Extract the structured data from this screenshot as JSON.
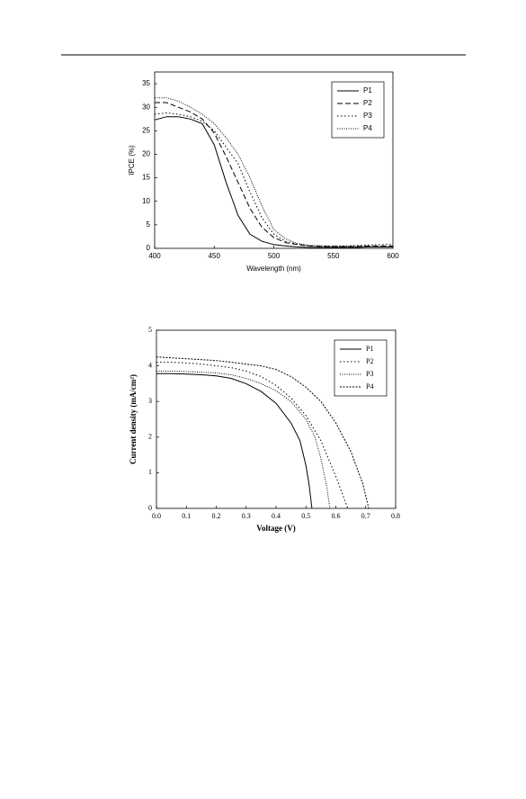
{
  "chart_data": [
    {
      "type": "line",
      "xlabel": "Wavelength (nm)",
      "ylabel": "IPCE (%)",
      "xlim": [
        400,
        600
      ],
      "ylim": [
        0,
        37.5
      ],
      "xticks": [
        400,
        450,
        500,
        550,
        600
      ],
      "yticks": [
        0,
        5,
        10,
        15,
        20,
        25,
        30,
        35
      ],
      "legend": "upper right",
      "font": "sans",
      "series": [
        {
          "name": "P1",
          "color": "#000000",
          "dash": "solid",
          "x": [
            400,
            410,
            420,
            430,
            440,
            450,
            460,
            470,
            480,
            490,
            500,
            510,
            520,
            530,
            540,
            550,
            560,
            570,
            580,
            590,
            600
          ],
          "values": [
            27.3,
            28,
            28,
            27.5,
            26.5,
            22,
            14,
            7,
            3,
            1.5,
            0.8,
            0.5,
            0.3,
            0.2,
            0.2,
            0.2,
            0.2,
            0.2,
            0.3,
            0.3,
            0.3
          ]
        },
        {
          "name": "P2",
          "color": "#000000",
          "dash": "dashed",
          "x": [
            400,
            410,
            420,
            430,
            440,
            450,
            460,
            470,
            480,
            490,
            500,
            510,
            520,
            530,
            540,
            550,
            560,
            570,
            580,
            590,
            600
          ],
          "values": [
            31,
            31,
            30,
            29,
            27.5,
            24.5,
            19.5,
            14,
            8.5,
            4.5,
            2.3,
            1.2,
            0.8,
            0.5,
            0.4,
            0.4,
            0.4,
            0.4,
            0.5,
            0.5,
            0.5
          ]
        },
        {
          "name": "P3",
          "color": "#000000",
          "dash": "dotted",
          "x": [
            400,
            410,
            420,
            430,
            440,
            450,
            460,
            470,
            480,
            490,
            500,
            510,
            520,
            530,
            540,
            550,
            560,
            570,
            580,
            590,
            600
          ],
          "values": [
            28.5,
            28.8,
            28.5,
            28,
            27,
            25,
            21.5,
            18,
            12,
            6.5,
            3,
            1.5,
            0.9,
            0.6,
            0.5,
            0.5,
            0.5,
            0.6,
            0.7,
            0.8,
            0.8
          ]
        },
        {
          "name": "P4",
          "color": "#000000",
          "dash": "fine",
          "x": [
            400,
            410,
            420,
            430,
            440,
            450,
            460,
            470,
            480,
            490,
            500,
            510,
            520,
            530,
            540,
            550,
            560,
            570,
            580,
            590,
            600
          ],
          "values": [
            32,
            32,
            31.3,
            30,
            28.5,
            26.5,
            23.5,
            20,
            15,
            9,
            4,
            2,
            1,
            0.6,
            0.5,
            0.4,
            0.4,
            0.4,
            0.3,
            0.3,
            0.3
          ]
        }
      ]
    },
    {
      "type": "line",
      "xlabel": "Voltage (V)",
      "ylabel": "Current density (mA/cm²)",
      "xlim": [
        0,
        0.8
      ],
      "ylim": [
        0,
        5
      ],
      "xticks": [
        {
          "value": 0,
          "label": "0.0"
        },
        0.1,
        0.2,
        0.3,
        0.4,
        0.5,
        0.6,
        0.7,
        0.8
      ],
      "yticks": [
        0,
        1,
        2,
        3,
        4,
        5
      ],
      "legend": "upper right",
      "font": "serif",
      "series": [
        {
          "name": "P1",
          "color": "#000000",
          "dash": "solid",
          "x": [
            0,
            0.05,
            0.1,
            0.15,
            0.2,
            0.25,
            0.3,
            0.35,
            0.4,
            0.45,
            0.48,
            0.5,
            0.51,
            0.52
          ],
          "values": [
            3.78,
            3.78,
            3.77,
            3.75,
            3.72,
            3.65,
            3.5,
            3.28,
            2.95,
            2.4,
            1.9,
            1.2,
            0.7,
            0
          ]
        },
        {
          "name": "P2",
          "color": "#000000",
          "dash": "dotted",
          "x": [
            0,
            0.05,
            0.1,
            0.15,
            0.2,
            0.25,
            0.3,
            0.35,
            0.4,
            0.45,
            0.5,
            0.55,
            0.6,
            0.64
          ],
          "values": [
            4.1,
            4.1,
            4.08,
            4.05,
            4,
            3.95,
            3.85,
            3.7,
            3.45,
            3.1,
            2.6,
            1.9,
            0.9,
            0
          ]
        },
        {
          "name": "P3",
          "color": "#000000",
          "dash": "fine",
          "x": [
            0,
            0.05,
            0.1,
            0.15,
            0.2,
            0.25,
            0.3,
            0.35,
            0.4,
            0.45,
            0.5,
            0.53,
            0.55,
            0.57,
            0.58
          ],
          "values": [
            3.85,
            3.85,
            3.84,
            3.82,
            3.8,
            3.75,
            3.65,
            3.5,
            3.3,
            3,
            2.5,
            2,
            1.4,
            0.6,
            0
          ]
        },
        {
          "name": "P4",
          "color": "#000000",
          "dash": "dense",
          "x": [
            0,
            0.1,
            0.2,
            0.25,
            0.3,
            0.35,
            0.4,
            0.45,
            0.5,
            0.55,
            0.6,
            0.65,
            0.69,
            0.71
          ],
          "values": [
            4.25,
            4.2,
            4.15,
            4.1,
            4.05,
            4,
            3.9,
            3.7,
            3.4,
            3,
            2.4,
            1.6,
            0.7,
            0
          ]
        }
      ]
    }
  ]
}
